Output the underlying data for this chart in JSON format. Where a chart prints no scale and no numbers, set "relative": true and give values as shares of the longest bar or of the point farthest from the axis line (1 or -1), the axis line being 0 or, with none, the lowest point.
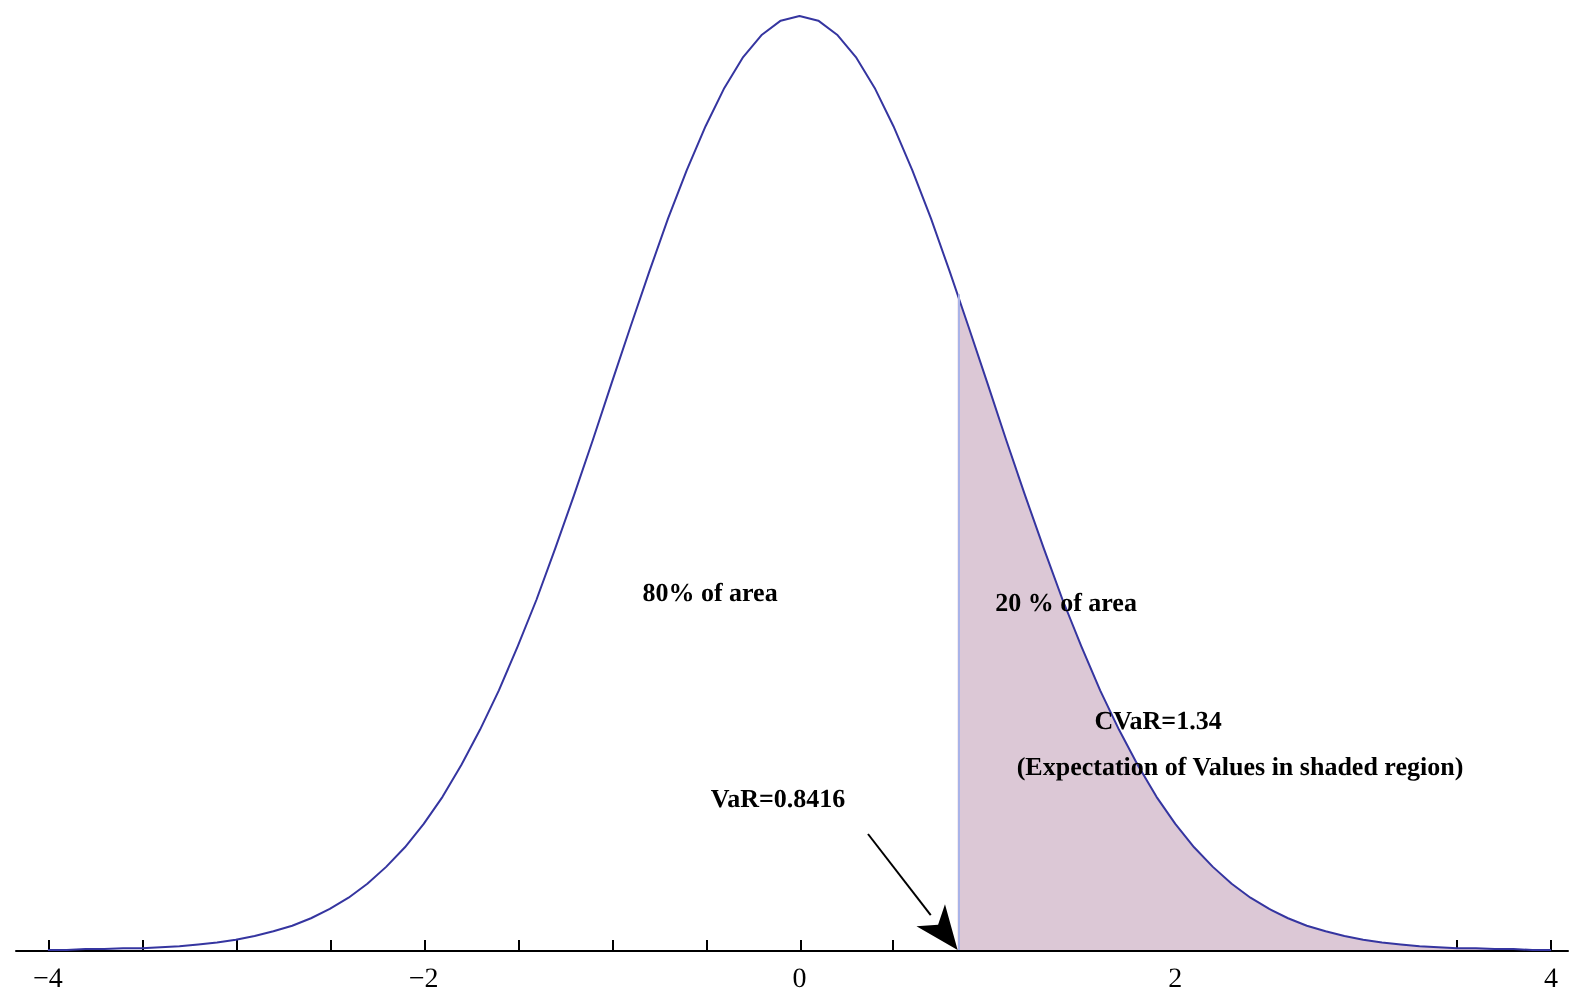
{
  "chart_data": {
    "type": "line",
    "relative": true,
    "marker": "none",
    "xlim": [
      -4.17,
      4.09
    ],
    "xticks": [
      {
        "value": -4,
        "label": "−4"
      },
      {
        "value": -3.5,
        "label": null
      },
      {
        "value": -3,
        "label": null
      },
      {
        "value": -2.5,
        "label": null
      },
      {
        "value": -2,
        "label": "−2"
      },
      {
        "value": -1.5,
        "label": null
      },
      {
        "value": -1,
        "label": null
      },
      {
        "value": -0.5,
        "label": null
      },
      0,
      {
        "value": 0.5,
        "label": null
      },
      {
        "value": 1,
        "label": null
      },
      {
        "value": 1.5,
        "label": null
      },
      2,
      {
        "value": 2.5,
        "label": null
      },
      {
        "value": 3,
        "label": null
      },
      {
        "value": 3.5,
        "label": null
      },
      4
    ],
    "series": [
      {
        "type": "area",
        "color": "#dcc8d6",
        "x": [
          0.8416,
          0.9,
          1,
          1.1,
          1.2,
          1.3,
          1.4,
          1.5,
          1.6,
          1.7,
          1.8,
          1.9,
          2,
          2.1,
          2.2,
          2.3,
          2.4,
          2.5,
          2.6,
          2.7,
          2.8,
          2.9,
          3,
          3.1,
          3.2,
          3.3,
          3.4,
          3.5,
          3.6,
          3.7,
          3.8,
          3.9,
          4
        ],
        "values": [
          0.702,
          0.667,
          0.607,
          0.546,
          0.487,
          0.43,
          0.375,
          0.325,
          0.278,
          0.236,
          0.198,
          0.164,
          0.135,
          0.11,
          0.089,
          0.071,
          0.056,
          0.044,
          0.034,
          0.026,
          0.02,
          0.015,
          0.011,
          0.008,
          0.006,
          0.004,
          0.003,
          0.002,
          0.002,
          0.001,
          0.001,
          0.0,
          0.0
        ]
      },
      {
        "color": "#3535a0",
        "x": [
          -4,
          -3.9,
          -3.8,
          -3.7,
          -3.6,
          -3.5,
          -3.4,
          -3.3,
          -3.2,
          -3.1,
          -3,
          -2.9,
          -2.8,
          -2.7,
          -2.6,
          -2.5,
          -2.4,
          -2.3,
          -2.2,
          -2.1,
          -2,
          -1.9,
          -1.8,
          -1.7,
          -1.6,
          -1.5,
          -1.4,
          -1.3,
          -1.2,
          -1.1,
          -1,
          -0.9,
          -0.8,
          -0.7,
          -0.6,
          -0.5,
          -0.4,
          -0.3,
          -0.2,
          -0.1,
          0,
          0.1,
          0.2,
          0.3,
          0.4,
          0.5,
          0.6,
          0.7,
          0.8,
          0.9,
          1,
          1.1,
          1.2,
          1.3,
          1.4,
          1.5,
          1.6,
          1.7,
          1.8,
          1.9,
          2,
          2.1,
          2.2,
          2.3,
          2.4,
          2.5,
          2.6,
          2.7,
          2.8,
          2.9,
          3,
          3.1,
          3.2,
          3.3,
          3.4,
          3.5,
          3.6,
          3.7,
          3.8,
          3.9,
          4
        ],
        "values": [
          0.0,
          0.0,
          0.001,
          0.001,
          0.002,
          0.002,
          0.003,
          0.004,
          0.006,
          0.008,
          0.011,
          0.015,
          0.02,
          0.026,
          0.034,
          0.044,
          0.056,
          0.071,
          0.089,
          0.11,
          0.135,
          0.164,
          0.198,
          0.236,
          0.278,
          0.325,
          0.375,
          0.43,
          0.487,
          0.546,
          0.607,
          0.667,
          0.726,
          0.783,
          0.835,
          0.882,
          0.923,
          0.956,
          0.98,
          0.995,
          1,
          0.995,
          0.98,
          0.956,
          0.923,
          0.882,
          0.835,
          0.783,
          0.726,
          0.667,
          0.607,
          0.546,
          0.487,
          0.43,
          0.375,
          0.325,
          0.278,
          0.236,
          0.198,
          0.164,
          0.135,
          0.11,
          0.089,
          0.071,
          0.056,
          0.044,
          0.034,
          0.026,
          0.02,
          0.015,
          0.011,
          0.008,
          0.006,
          0.004,
          0.003,
          0.002,
          0.002,
          0.001,
          0.001,
          0.0,
          0.0
        ]
      }
    ],
    "ref_lines": [
      {
        "axis": "x",
        "value": 0.8416,
        "color": "#a9b3e8"
      }
    ],
    "annotations": [
      "80% of area",
      "20 % of area",
      "CVaR=1.34",
      "(Expectation of Values in shaded region)",
      "VaR=0.8416"
    ]
  }
}
